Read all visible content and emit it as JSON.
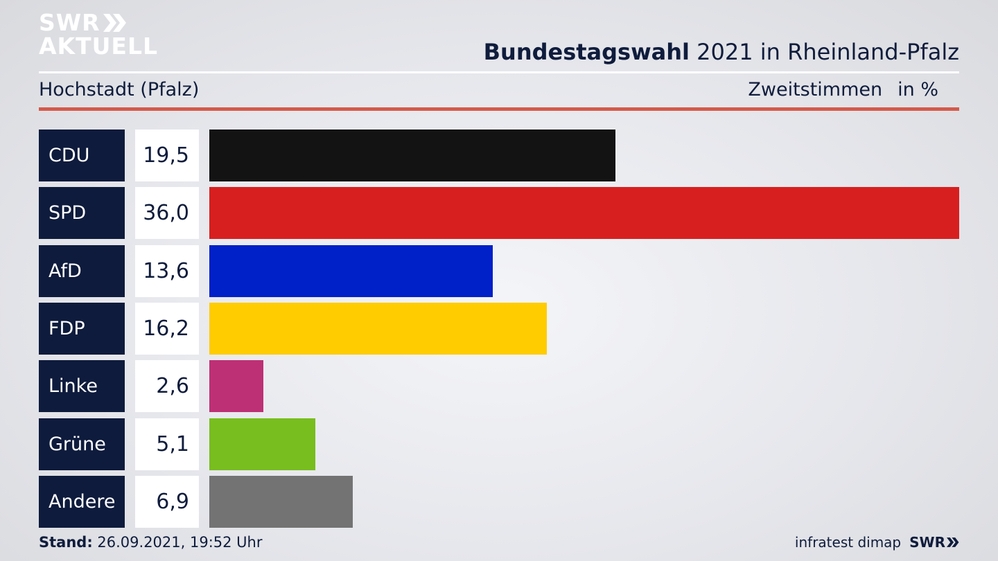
{
  "branding": {
    "logo_line1": "SWR",
    "logo_line2": "AKTUELL",
    "footer_logo": "SWR",
    "source": "infratest dimap"
  },
  "header": {
    "title_bold": "Bundestagswahl",
    "title_rest": " 2021 in Rheinland-Pfalz",
    "location": "Hochstadt (Pfalz)",
    "measure": "Zweitstimmen",
    "unit": "in %"
  },
  "footer": {
    "stand_label": "Stand:",
    "stand_value": " 26.09.2021, 19:52 Uhr"
  },
  "chart_data": {
    "type": "bar",
    "orientation": "horizontal",
    "categories": [
      "CDU",
      "SPD",
      "AfD",
      "FDP",
      "Linke",
      "Grüne",
      "Andere"
    ],
    "values": [
      19.5,
      36.0,
      13.6,
      16.2,
      2.6,
      5.1,
      6.9
    ],
    "value_labels": [
      "19,5",
      "36,0",
      "13,6",
      "16,2",
      "2,6",
      "5,1",
      "6,9"
    ],
    "colors": [
      "#131313",
      "#d81f1f",
      "#0020c8",
      "#ffcc00",
      "#be3075",
      "#78be1e",
      "#737373"
    ],
    "xlim": [
      0,
      36.0
    ],
    "grid": false,
    "legend": "none"
  }
}
